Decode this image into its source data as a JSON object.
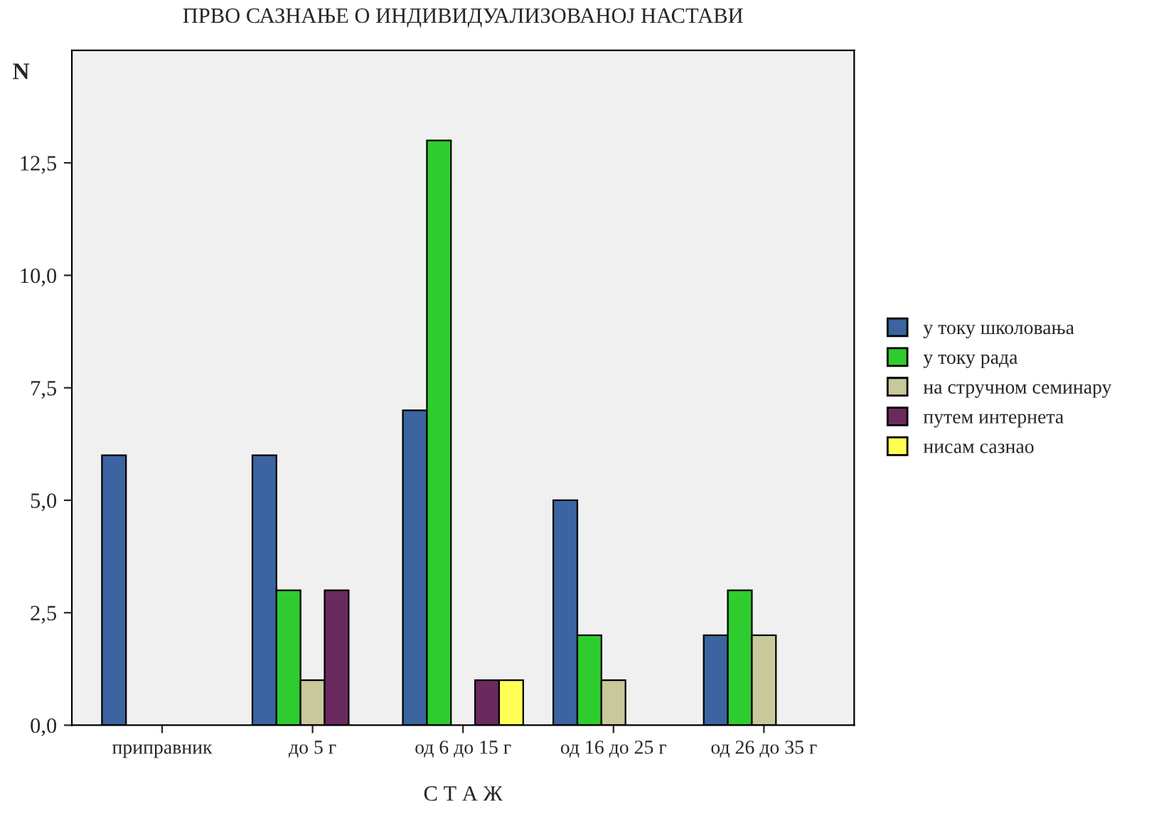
{
  "chart_data": {
    "type": "bar",
    "title": "ПРВО САЗНАЊЕ О ИНДИВИДУАЛИЗОВАНОЈ НАСТАВИ",
    "xlabel": "С Т А Ж",
    "ylabel": "N",
    "categories": [
      "приправник",
      "до 5 г",
      "од 6 до 15 г",
      "од 16 до 25 г",
      "од 26 до 35 г"
    ],
    "series": [
      {
        "name": "у току школовања",
        "color": "#3b64a0",
        "values": [
          6,
          6,
          7,
          5,
          2
        ]
      },
      {
        "name": "у току рада",
        "color": "#2ecc2e",
        "values": [
          null,
          3,
          13,
          2,
          3
        ]
      },
      {
        "name": "на стручном семинару",
        "color": "#c8c89c",
        "values": [
          null,
          1,
          null,
          1,
          2
        ]
      },
      {
        "name": "путем интернета",
        "color": "#6b2a5e",
        "values": [
          null,
          3,
          1,
          null,
          null
        ]
      },
      {
        "name": "нисам сазнао",
        "color": "#ffff55",
        "values": [
          null,
          null,
          1,
          null,
          null
        ]
      }
    ],
    "ylim": [
      0,
      15
    ],
    "yticks": [
      {
        "value": 0,
        "label": "0,0"
      },
      {
        "value": 2.5,
        "label": "2,5"
      },
      {
        "value": 5,
        "label": "5,0"
      },
      {
        "value": 7.5,
        "label": "7,5"
      },
      {
        "value": 10,
        "label": "10,0"
      },
      {
        "value": 12.5,
        "label": "12,5"
      }
    ],
    "grid": false,
    "legend": "right"
  }
}
